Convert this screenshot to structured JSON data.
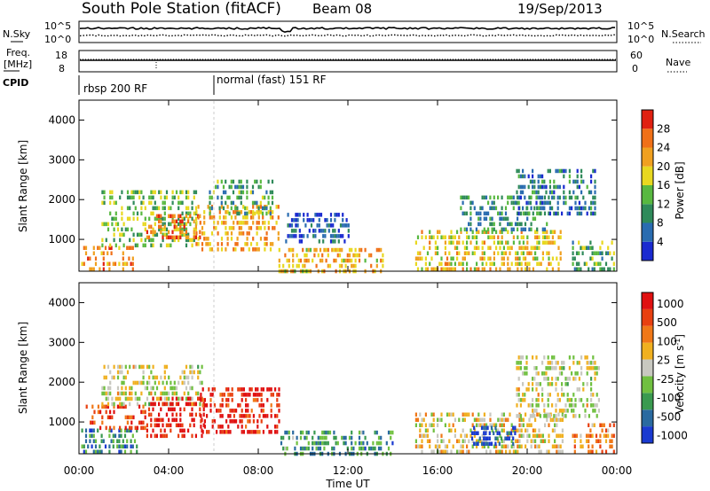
{
  "header": {
    "title": "South Pole Station (fitACF)",
    "beam": "Beam 08",
    "date": "19/Sep/2013"
  },
  "top_panels": {
    "nsky_label": "N.Sky",
    "nsky_ticks": [
      "10^5",
      "10^0"
    ],
    "nsearch_label": "N.Search",
    "nsearch_ticks": [
      "10^5",
      "10^0"
    ],
    "freq_label_1": "Freq.",
    "freq_label_2": "[MHz]",
    "freq_ticks": [
      "18",
      "8"
    ],
    "nave_label": "Nave",
    "nave_ticks": [
      "60",
      "0"
    ],
    "cpid_label": "CPID",
    "cpid_segments": [
      {
        "label": "rbsp 200 RF",
        "start_hour": 0
      },
      {
        "label": "normal (fast) 151 RF",
        "start_hour": 6.0
      }
    ]
  },
  "chart_data": [
    {
      "type": "heatmap",
      "name": "power",
      "ylabel": "Slant Range [km]",
      "yticks": [
        "1000",
        "2000",
        "3000",
        "4000"
      ],
      "ylim": [
        200,
        4500
      ],
      "xlim_hours": [
        0,
        24
      ],
      "colorbar_label": "Power [dB]",
      "colorbar_ticks": [
        "4",
        "8",
        "12",
        "16",
        "20",
        "24",
        "28"
      ],
      "colors": [
        "#1a2ad0",
        "#2a6cb0",
        "#2f8a5a",
        "#58b840",
        "#e8d820",
        "#f0a020",
        "#f07018",
        "#e02010"
      ],
      "regions": [
        {
          "t0": 0.1,
          "t1": 2.4,
          "r0": 300,
          "r1": 900,
          "v": 0.75
        },
        {
          "t0": 1.0,
          "t1": 5.2,
          "r0": 900,
          "r1": 2300,
          "v": 0.45
        },
        {
          "t0": 3.0,
          "t1": 5.4,
          "r0": 1100,
          "r1": 1700,
          "v": 0.8
        },
        {
          "t0": 5.2,
          "t1": 8.9,
          "r0": 800,
          "r1": 2000,
          "v": 0.7
        },
        {
          "t0": 5.8,
          "t1": 8.6,
          "r0": 1700,
          "r1": 2600,
          "v": 0.35
        },
        {
          "t0": 8.9,
          "t1": 13.6,
          "r0": 250,
          "r1": 900,
          "v": 0.65
        },
        {
          "t0": 9.2,
          "t1": 12.0,
          "r0": 1000,
          "r1": 1800,
          "v": 0.15
        },
        {
          "t0": 15.0,
          "t1": 21.5,
          "r0": 300,
          "r1": 1300,
          "v": 0.6
        },
        {
          "t0": 17.0,
          "t1": 21.0,
          "r0": 1300,
          "r1": 2200,
          "v": 0.3
        },
        {
          "t0": 19.5,
          "t1": 23.0,
          "r0": 1700,
          "r1": 2800,
          "v": 0.25
        },
        {
          "t0": 22.0,
          "t1": 23.9,
          "r0": 300,
          "r1": 1000,
          "v": 0.4
        }
      ]
    },
    {
      "type": "heatmap",
      "name": "velocity",
      "ylabel": "Slant Range [km]",
      "yticks": [
        "1000",
        "2000",
        "3000",
        "4000"
      ],
      "ylim": [
        200,
        4500
      ],
      "xlim_hours": [
        0,
        24
      ],
      "xticks": [
        "00:00",
        "04:00",
        "08:00",
        "12:00",
        "16:00",
        "20:00",
        "00:00"
      ],
      "xlabel": "Time UT",
      "colorbar_label": "Velocity [m s",
      "colorbar_label_sup": "-1",
      "colorbar_ticks": [
        "1000",
        "500",
        "100",
        "25",
        "-25",
        "-100",
        "-500",
        "-1000"
      ],
      "colors": [
        "#1a3ad0",
        "#2a6aa0",
        "#3a9a50",
        "#70c040",
        "#c8c8c0",
        "#f0b020",
        "#f07818",
        "#e84010",
        "#e01010"
      ],
      "regions": [
        {
          "t0": 0.1,
          "t1": 2.6,
          "r0": 300,
          "r1": 900,
          "v": 0.25
        },
        {
          "t0": 0.3,
          "t1": 3.0,
          "r0": 900,
          "r1": 1500,
          "v": 0.85
        },
        {
          "t0": 1.0,
          "t1": 5.5,
          "r0": 1500,
          "r1": 2500,
          "v": 0.5
        },
        {
          "t0": 3.0,
          "t1": 5.6,
          "r0": 700,
          "r1": 1700,
          "v": 0.95
        },
        {
          "t0": 5.4,
          "t1": 8.9,
          "r0": 800,
          "r1": 2000,
          "v": 0.9
        },
        {
          "t0": 8.9,
          "t1": 14.0,
          "r0": 250,
          "r1": 900,
          "v": 0.28
        },
        {
          "t0": 15.0,
          "t1": 21.6,
          "r0": 300,
          "r1": 1300,
          "v": 0.55
        },
        {
          "t0": 17.5,
          "t1": 19.5,
          "r0": 500,
          "r1": 1000,
          "v": 0.1
        },
        {
          "t0": 19.5,
          "t1": 23.2,
          "r0": 1200,
          "r1": 2800,
          "v": 0.5
        },
        {
          "t0": 22.0,
          "t1": 23.9,
          "r0": 300,
          "r1": 1000,
          "v": 0.7
        }
      ]
    }
  ]
}
